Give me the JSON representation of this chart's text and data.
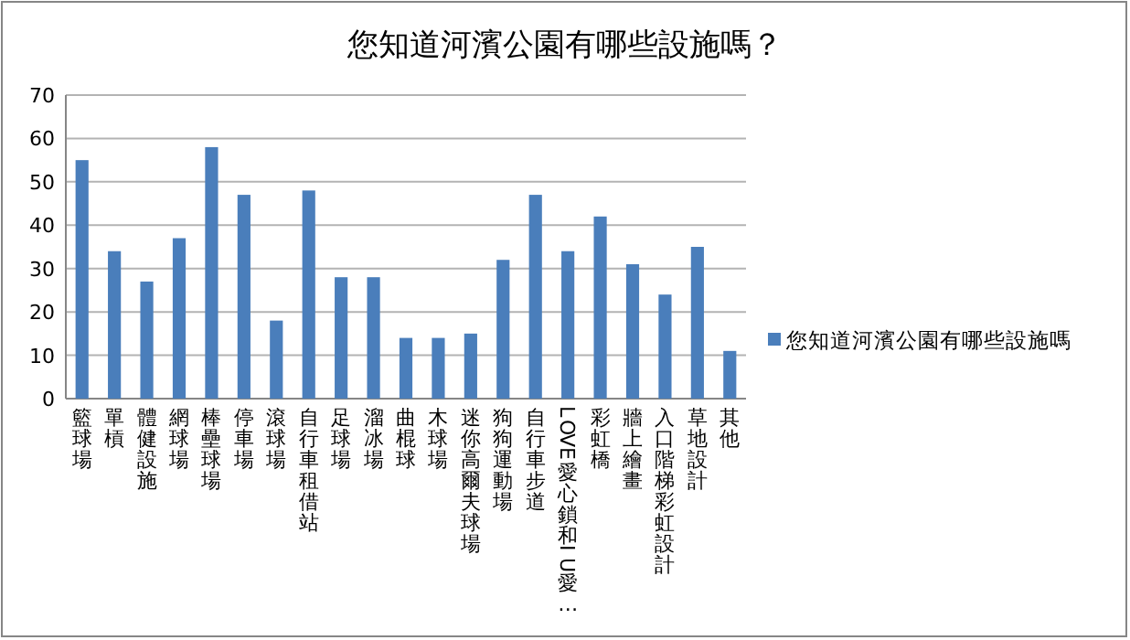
{
  "chart_data": {
    "type": "bar",
    "title": "您知道河濱公園有哪些設施嗎？",
    "categories": [
      "籃球場",
      "單槓",
      "體健設施",
      "網球場",
      "棒壘球場",
      "停車場",
      "滾球場",
      "自行車租借站",
      "足球場",
      "溜冰場",
      "曲棍球",
      "木球場",
      "迷你高爾夫球場",
      "狗狗運動場",
      "自行車步道",
      "LOVE愛心鎖和I U愛…",
      "彩虹橋",
      "牆上繪畫",
      "入口階梯彩虹設計",
      "草地設計",
      "其他"
    ],
    "series": [
      {
        "name": "您知道河濱公園有哪些設施嗎",
        "color": "#4a7ebb",
        "values": [
          55,
          34,
          27,
          37,
          58,
          47,
          18,
          48,
          28,
          28,
          14,
          14,
          15,
          32,
          47,
          34,
          42,
          31,
          24,
          35,
          11
        ]
      }
    ],
    "ylim": [
      0,
      70
    ],
    "yticks": [
      0,
      10,
      20,
      30,
      40,
      50,
      60,
      70
    ],
    "grid": "y",
    "legend": "right"
  }
}
